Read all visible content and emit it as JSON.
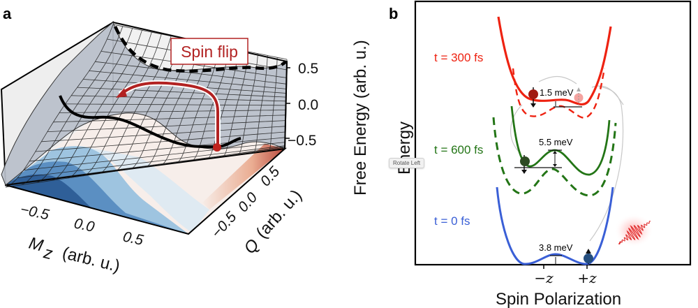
{
  "figure": {
    "panels": [
      "a",
      "b"
    ]
  },
  "chart_data": [
    {
      "panel": "a",
      "type": "surface3d",
      "title": "",
      "xlabel": "M_z (arb. u.)",
      "xlabel_main": "M",
      "xlabel_sub": "z",
      "xlabel_units": "(arb. u.)",
      "ylabel": "Q (arb. u.)",
      "ylabel_main": "Q",
      "ylabel_units": "(arb. u.)",
      "zlabel": "Free Energy (arb. u.)",
      "x_ticks": [
        "−0.5",
        "0.0",
        "0.5"
      ],
      "y_ticks": [
        "−0.5",
        "0.0",
        "0.5"
      ],
      "z_ticks": [
        "0.5",
        "0.0",
        "−0.5"
      ],
      "xlim": [
        -1,
        1
      ],
      "ylim": [
        -1,
        1
      ],
      "zlim": [
        -0.6,
        0.6
      ],
      "annotation": "Spin flip",
      "annotation_color": "#b22222",
      "surface_color": "#b8bfca",
      "contour_colormap": [
        "#2f5f98",
        "#5b8fc2",
        "#9ec4e0",
        "#dbe9f3",
        "#f6eeea",
        "#f2c9b2",
        "#d98466",
        "#b3392c"
      ],
      "lines": [
        {
          "name": "solid-path",
          "style": "solid",
          "color": "#000000"
        },
        {
          "name": "dashed-path",
          "style": "dashed",
          "color": "#000000"
        }
      ]
    },
    {
      "panel": "b",
      "type": "line",
      "title": "",
      "xlabel": "Spin Polarization",
      "ylabel": "Energy",
      "x_ticks": [
        "−z",
        "+z"
      ],
      "grid": false,
      "series": [
        {
          "name": "t = 300 fs",
          "color": "#ee2211",
          "barrier": "1.5 meV",
          "style": "solid",
          "dashed_reference": true
        },
        {
          "name": "t = 600 fs",
          "color": "#237516",
          "barrier": "5.5 meV",
          "style": "solid",
          "dashed_reference": true
        },
        {
          "name": "t = 0 fs",
          "color": "#3a5fd6",
          "barrier": "3.8 meV",
          "style": "solid",
          "dashed_reference": false
        }
      ],
      "annotations": [
        "1.5 meV",
        "5.5 meV",
        "3.8 meV"
      ],
      "marker_colors": {
        "t300": "#a11a12",
        "t300_ghost": "#f4a3a0",
        "t600": "#2d4a22",
        "t0": "#244e7e"
      }
    }
  ],
  "tooltip": {
    "label": "Rotate Left"
  }
}
